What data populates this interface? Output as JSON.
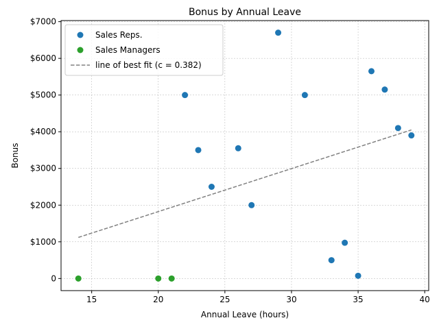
{
  "chart_data": {
    "type": "scatter",
    "title": "Bonus by Annual Leave",
    "xlabel": "Annual Leave (hours)",
    "ylabel": "Bonus",
    "xlim": [
      12.7,
      40.3
    ],
    "ylim": [
      -330,
      7030
    ],
    "x_ticks": [
      15,
      20,
      25,
      30,
      35,
      40
    ],
    "x_tick_labels": [
      "15",
      "20",
      "25",
      "30",
      "35",
      "40"
    ],
    "y_ticks": [
      0,
      1000,
      2000,
      3000,
      4000,
      5000,
      6000,
      7000
    ],
    "y_tick_labels": [
      "0",
      "$1000",
      "$2000",
      "$3000",
      "$4000",
      "$5000",
      "$6000",
      "$7000"
    ],
    "grid": true,
    "legend_position": "top-left",
    "series": [
      {
        "name": "Sales Reps.",
        "kind": "scatter",
        "color": "#1f77b4",
        "points": [
          {
            "x": 22,
            "y": 5000
          },
          {
            "x": 23,
            "y": 3500
          },
          {
            "x": 24,
            "y": 2500
          },
          {
            "x": 26,
            "y": 3550
          },
          {
            "x": 27,
            "y": 2000
          },
          {
            "x": 29,
            "y": 6700
          },
          {
            "x": 31,
            "y": 5000
          },
          {
            "x": 33,
            "y": 500
          },
          {
            "x": 34,
            "y": 975
          },
          {
            "x": 35,
            "y": 75
          },
          {
            "x": 36,
            "y": 5650
          },
          {
            "x": 37,
            "y": 5150
          },
          {
            "x": 38,
            "y": 4100
          },
          {
            "x": 39,
            "y": 3900
          }
        ]
      },
      {
        "name": "Sales Managers",
        "kind": "scatter",
        "color": "#2ca02c",
        "points": [
          {
            "x": 14,
            "y": 0
          },
          {
            "x": 20,
            "y": 0
          },
          {
            "x": 21,
            "y": 0
          }
        ]
      },
      {
        "name": "line of best fit (c = 0.382)",
        "kind": "line",
        "color": "#808080",
        "points": [
          {
            "x": 14,
            "y": 1120
          },
          {
            "x": 39,
            "y": 4050
          }
        ]
      }
    ]
  }
}
